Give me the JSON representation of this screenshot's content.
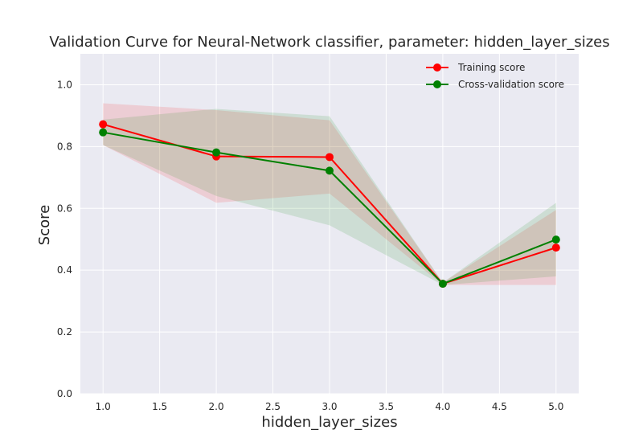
{
  "chart_data": {
    "type": "line",
    "title": "Validation Curve for Neural-Network classifier, parameter: hidden_layer_sizes",
    "xlabel": "hidden_layer_sizes",
    "ylabel": "Score",
    "xlim": [
      0.8,
      5.2
    ],
    "ylim": [
      0.0,
      1.1
    ],
    "x": [
      1.0,
      2.0,
      3.0,
      4.0,
      5.0
    ],
    "xticks": [
      "1.0",
      "1.5",
      "2.0",
      "2.5",
      "3.0",
      "3.5",
      "4.0",
      "4.5",
      "5.0"
    ],
    "yticks": [
      "0.0",
      "0.2",
      "0.4",
      "0.6",
      "0.8",
      "1.0"
    ],
    "grid": true,
    "legend_position": "top-right",
    "background": "#eaeaf2",
    "series": [
      {
        "name": "Training score",
        "color": "#ff0000",
        "values": [
          0.872,
          0.768,
          0.766,
          0.356,
          0.473
        ],
        "band_low": [
          0.805,
          0.618,
          0.648,
          0.352,
          0.352
        ],
        "band_high": [
          0.94,
          0.918,
          0.885,
          0.36,
          0.595
        ]
      },
      {
        "name": "Cross-validation score",
        "color": "#008000",
        "values": [
          0.846,
          0.781,
          0.722,
          0.356,
          0.499
        ],
        "band_low": [
          0.805,
          0.64,
          0.545,
          0.352,
          0.38
        ],
        "band_high": [
          0.887,
          0.922,
          0.898,
          0.36,
          0.618
        ]
      }
    ]
  }
}
